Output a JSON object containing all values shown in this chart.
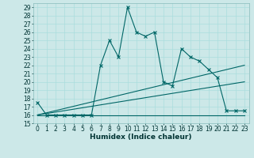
{
  "xlabel": "Humidex (Indice chaleur)",
  "background_color": "#cce8e8",
  "grid_color": "#aadddd",
  "line_color": "#006666",
  "xlim": [
    -0.5,
    23.5
  ],
  "ylim": [
    15,
    29.5
  ],
  "yticks": [
    15,
    16,
    17,
    18,
    19,
    20,
    21,
    22,
    23,
    24,
    25,
    26,
    27,
    28,
    29
  ],
  "xticks": [
    0,
    1,
    2,
    3,
    4,
    5,
    6,
    7,
    8,
    9,
    10,
    11,
    12,
    13,
    14,
    15,
    16,
    17,
    18,
    19,
    20,
    21,
    22,
    23
  ],
  "series0_x": [
    0,
    1,
    2,
    3,
    4,
    5,
    6,
    7,
    8,
    9,
    10,
    11,
    12,
    13,
    14,
    15,
    16,
    17,
    18,
    19,
    20,
    21,
    22,
    23
  ],
  "series0_y": [
    17.5,
    16,
    16,
    16,
    16,
    16,
    16,
    22,
    25,
    23,
    29,
    26,
    25.5,
    26,
    20,
    19.5,
    24,
    23,
    22.5,
    21.5,
    20.5,
    16.5,
    16.5,
    16.5
  ],
  "series1_x": [
    0,
    4,
    10,
    21,
    23
  ],
  "series1_y": [
    16,
    16,
    16,
    16,
    16
  ],
  "series2_x": [
    0,
    23
  ],
  "series2_y": [
    16,
    22
  ],
  "series3_x": [
    0,
    23
  ],
  "series3_y": [
    16,
    20
  ],
  "tick_fontsize": 5.5,
  "xlabel_fontsize": 6.5
}
